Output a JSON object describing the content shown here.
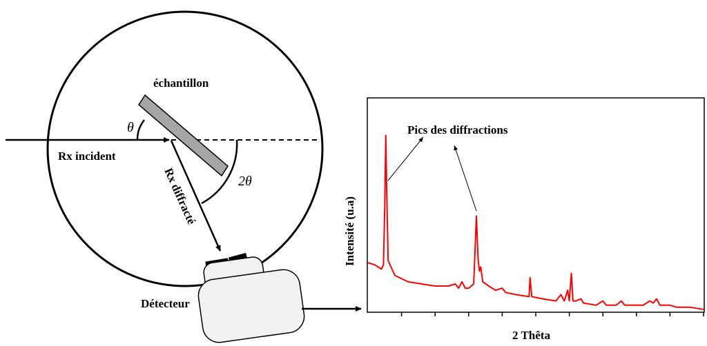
{
  "labels": {
    "sample": "échantillon",
    "theta": "θ",
    "two_theta": "2θ",
    "incident": "Rx incident",
    "diffracted": "Rx diffracté",
    "detector": "Détecteur",
    "peaks": "Pics des diffractions",
    "ylabel": "Intensité (u.a)",
    "xlabel": "2 Thêta"
  },
  "colors": {
    "spectrum": "#ff0000",
    "sample_fill": "#a6a6a6",
    "detector_fill": "#f2f2f2"
  },
  "chart_data": {
    "type": "line",
    "title": "",
    "xlabel": "2 Thêta",
    "ylabel": "Intensité (u.a)",
    "xlim": [
      0,
      100
    ],
    "ylim": [
      0,
      100
    ],
    "xticks_count": 10,
    "series": [
      {
        "values": [
          [
            0,
            23
          ],
          [
            2,
            22
          ],
          [
            4,
            20
          ],
          [
            4.6,
            22
          ],
          [
            5,
            50
          ],
          [
            5.3,
            83
          ],
          [
            5.6,
            55
          ],
          [
            6,
            24
          ],
          [
            8,
            17
          ],
          [
            12,
            14
          ],
          [
            16,
            13
          ],
          [
            20,
            12
          ],
          [
            24,
            12
          ],
          [
            26,
            13
          ],
          [
            27,
            11
          ],
          [
            28,
            14
          ],
          [
            29,
            11
          ],
          [
            30,
            11
          ],
          [
            31.5,
            13
          ],
          [
            32.3,
            45
          ],
          [
            32.8,
            25
          ],
          [
            33.2,
            19
          ],
          [
            33.6,
            21
          ],
          [
            34.2,
            14
          ],
          [
            36,
            12
          ],
          [
            38,
            10
          ],
          [
            40,
            11
          ],
          [
            41,
            9
          ],
          [
            44,
            8
          ],
          [
            48,
            7
          ],
          [
            48.3,
            16
          ],
          [
            48.8,
            7
          ],
          [
            52,
            6
          ],
          [
            56,
            5
          ],
          [
            57.5,
            8
          ],
          [
            58.5,
            5
          ],
          [
            59.5,
            10
          ],
          [
            60,
            5
          ],
          [
            60.6,
            18
          ],
          [
            61.1,
            5
          ],
          [
            62,
            5
          ],
          [
            63.5,
            6
          ],
          [
            64.2,
            4
          ],
          [
            68,
            3
          ],
          [
            70,
            5
          ],
          [
            71,
            3
          ],
          [
            74,
            3
          ],
          [
            75.5,
            5
          ],
          [
            76.5,
            3
          ],
          [
            82,
            3
          ],
          [
            84,
            5
          ],
          [
            85,
            4
          ],
          [
            86,
            6
          ],
          [
            87,
            3
          ],
          [
            90,
            3
          ],
          [
            92,
            2
          ],
          [
            96,
            2
          ],
          [
            100,
            1
          ]
        ]
      }
    ]
  }
}
